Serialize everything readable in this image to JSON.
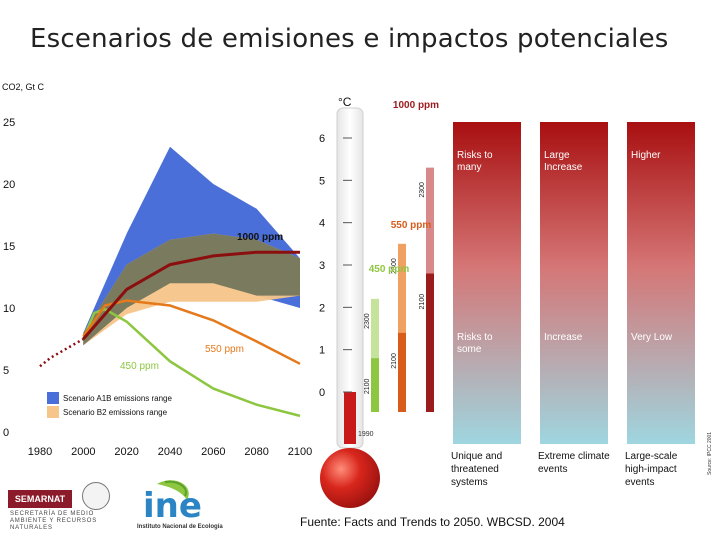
{
  "title": "Escenarios de emisiones e impactos potenciales",
  "source": "Fuente: Facts and Trends to 2050. WBCSD. 2004",
  "side_credit": "Source: IPCC 2001",
  "colors": {
    "a1b": "#4a6fd8",
    "b2": "#f5c589",
    "overlap": "#7a7a5e",
    "line_1000": "#8b0f0f",
    "line_550": "#e47a1c",
    "line_450": "#8dc63f",
    "historic": "#8b0f0f",
    "therm_red": "#c8191b"
  },
  "chart_data": {
    "type": "area",
    "ylabel": "CO2, Gt C",
    "x_ticks": [
      "1980",
      "2000",
      "2020",
      "2040",
      "2060",
      "2080",
      "2100"
    ],
    "y_ticks": [
      "0",
      "5",
      "10",
      "15",
      "20",
      "25"
    ],
    "xlim": [
      1980,
      2100
    ],
    "ylim": [
      0,
      25
    ],
    "legend": [
      "Scenario A1B emissions range",
      "Scenario B2 emissions range"
    ],
    "series": [
      {
        "name": "Scenario A1B emissions range",
        "kind": "band",
        "x": [
          2000,
          2020,
          2040,
          2060,
          2080,
          2100
        ],
        "upper": [
          8,
          16,
          23,
          20,
          18,
          14
        ],
        "lower": [
          7,
          10,
          12,
          12,
          11,
          10
        ]
      },
      {
        "name": "Scenario B2 emissions range",
        "kind": "band",
        "x": [
          2000,
          2020,
          2040,
          2060,
          2080,
          2100
        ],
        "upper": [
          8,
          13.5,
          15.5,
          16,
          15.5,
          14
        ],
        "lower": [
          7,
          9.5,
          10.5,
          10.5,
          10.5,
          11
        ]
      },
      {
        "name": "1000 ppm",
        "kind": "line",
        "x": [
          2000,
          2020,
          2040,
          2060,
          2080,
          2100
        ],
        "values": [
          7.5,
          11.5,
          13.5,
          14.2,
          14.5,
          14.5
        ]
      },
      {
        "name": "550 ppm",
        "kind": "line",
        "x": [
          2000,
          2010,
          2020,
          2040,
          2060,
          2080,
          2100
        ],
        "values": [
          7.7,
          10.2,
          10.6,
          10.2,
          9,
          7.3,
          5.5
        ]
      },
      {
        "name": "450 ppm",
        "kind": "line",
        "x": [
          2000,
          2005,
          2010,
          2020,
          2040,
          2060,
          2080,
          2100
        ],
        "values": [
          7.5,
          9.6,
          9.9,
          8.9,
          5.7,
          3.5,
          2.2,
          1.3
        ]
      },
      {
        "name": "historic",
        "kind": "dotted",
        "x": [
          1980,
          1985,
          1990,
          1995,
          2000
        ],
        "values": [
          5.3,
          6,
          6.5,
          7,
          7.5
        ]
      }
    ],
    "annotations": [
      "1000 ppm",
      "550 ppm",
      "450 ppm"
    ]
  },
  "thermometer": {
    "unit": "°C",
    "scale": [
      "0",
      "1",
      "2",
      "3",
      "4",
      "5",
      "6"
    ],
    "base_label": "1990",
    "bars": [
      {
        "label_top": "1000 ppm",
        "years": [
          "2100",
          "2300"
        ],
        "color_dark": "#9b1c1c",
        "color_light": "#d9898a"
      },
      {
        "label_top": "550 ppm",
        "years": [
          "2100",
          "2300"
        ],
        "color_dark": "#d85c1b",
        "color_light": "#f0a060"
      },
      {
        "label_top": "450 ppm",
        "years": [
          "2100",
          "2300"
        ],
        "color_dark": "#8dc63f",
        "color_light": "#c5e39a"
      }
    ]
  },
  "impacts": {
    "upper": [
      "Risks to many",
      "Large Increase",
      "Higher"
    ],
    "lower": [
      "Risks to some",
      "Increase",
      "Very Low"
    ],
    "categories": [
      "Unique and threatened systems",
      "Extreme climate events",
      "Large-scale high-impact events"
    ]
  },
  "logos": {
    "semarnat": "SEMARNAT",
    "semarnat_sub": "SECRETARÍA DE MEDIO AMBIENTE Y RECURSOS NATURALES",
    "ine": "ine",
    "ine_sub": "Instituto Nacional de Ecología"
  }
}
